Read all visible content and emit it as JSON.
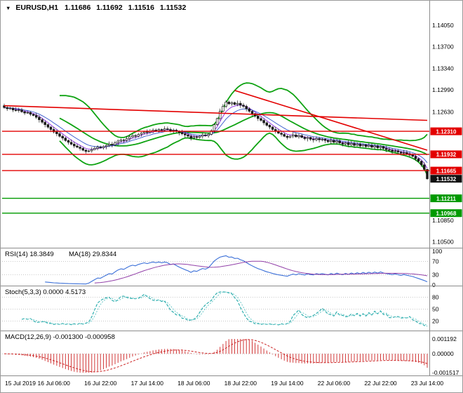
{
  "header": {
    "icon": "▼",
    "symbol_period": "EURUSD,H1",
    "open": "1.11686",
    "high": "1.11692",
    "low": "1.11516",
    "close": "1.11532"
  },
  "panes": {
    "rsi": {
      "label": "RSI(14) 18.3849",
      "ma_label": "MA(18) 29.8344"
    },
    "stoch": {
      "label": "Stoch(5,3,3) 0.0000 4.5173"
    },
    "macd": {
      "label": "MACD(12,26,9) -0.001300 -0.000958"
    }
  },
  "chart_data": {
    "type": "candlestick",
    "symbol": "EURUSD",
    "timeframe": "H1",
    "title": "EURUSD,H1 1.11686 1.11692 1.11516 1.11532",
    "final_candle": {
      "open": 1.11686,
      "high": 1.11692,
      "low": 1.11516,
      "close": 1.11532
    },
    "closes": [
      1.127,
      1.1268,
      1.1269,
      1.1266,
      1.1265,
      1.1266,
      1.1263,
      1.1261,
      1.1262,
      1.1259,
      1.1257,
      1.1254,
      1.125,
      1.1246,
      1.1242,
      1.1238,
      1.1234,
      1.123,
      1.1227,
      1.1223,
      1.122,
      1.1216,
      1.1213,
      1.121,
      1.1207,
      1.1205,
      1.1203,
      1.12,
      1.1198,
      1.1199,
      1.1201,
      1.1203,
      1.1205,
      1.1204,
      1.1206,
      1.1208,
      1.121,
      1.1209,
      1.1212,
      1.1215,
      1.1217,
      1.1216,
      1.1219,
      1.1222,
      1.1224,
      1.1223,
      1.1226,
      1.1228,
      1.123,
      1.1229,
      1.1231,
      1.1233,
      1.1232,
      1.1234,
      1.1233,
      1.1235,
      1.1234,
      1.1232,
      1.1233,
      1.1231,
      1.1229,
      1.1227,
      1.1225,
      1.1223,
      1.122,
      1.1222,
      1.1221,
      1.1223,
      1.1225,
      1.1224,
      1.1226,
      1.1232,
      1.1242,
      1.1252,
      1.1264,
      1.1272,
      1.1279,
      1.1276,
      1.1278,
      1.1275,
      1.1277,
      1.1274,
      1.1272,
      1.1268,
      1.1264,
      1.126,
      1.1256,
      1.1252,
      1.1249,
      1.1245,
      1.1241,
      1.1238,
      1.1234,
      1.1231,
      1.1228,
      1.1226,
      1.1223,
      1.1221,
      1.1223,
      1.1225,
      1.1222,
      1.1224,
      1.1221,
      1.1219,
      1.1221,
      1.1218,
      1.1217,
      1.1219,
      1.1217,
      1.1218,
      1.1216,
      1.1214,
      1.1216,
      1.1213,
      1.1215,
      1.1212,
      1.121,
      1.1212,
      1.1209,
      1.1211,
      1.1208,
      1.121,
      1.1207,
      1.1209,
      1.1206,
      1.1208,
      1.1205,
      1.1207,
      1.1204,
      1.1206,
      1.1203,
      1.1201,
      1.12,
      1.1198,
      1.1199,
      1.1197,
      1.1195,
      1.1196,
      1.1194,
      1.1192,
      1.119,
      1.1186,
      1.1182,
      1.1176,
      1.11686,
      1.11532
    ],
    "time_axis": [
      {
        "text": "15 Jul 2019",
        "index": 0
      },
      {
        "text": "16 Jul 06:00",
        "index": 17
      },
      {
        "text": "16 Jul 22:00",
        "index": 33
      },
      {
        "text": "17 Jul 14:00",
        "index": 49
      },
      {
        "text": "18 Jul 06:00",
        "index": 65
      },
      {
        "text": "18 Jul 22:00",
        "index": 81
      },
      {
        "text": "19 Jul 14:00",
        "index": 97
      },
      {
        "text": "22 Jul 06:00",
        "index": 113
      },
      {
        "text": "22 Jul 22:00",
        "index": 129
      },
      {
        "text": "23 Jul 14:00",
        "index": 145
      }
    ],
    "price_axis": {
      "min": 1.104,
      "max": 1.1443,
      "ticks": [
        1.1405,
        1.137,
        1.1334,
        1.1299,
        1.1263,
        1.1085,
        1.105
      ]
    },
    "levels": {
      "resistance": [
        1.1231,
        1.11932,
        1.11665
      ],
      "support": [
        1.11211,
        1.10968
      ],
      "current_price": 1.11532
    },
    "trendlines": [
      {
        "i1": 0,
        "p1": 1.1273,
        "i2": 145,
        "p2": 1.1249
      },
      {
        "i1": 79,
        "p1": 1.1298,
        "i2": 145,
        "p2": 1.12
      }
    ],
    "indicators": {
      "bollinger": {
        "period": 20,
        "deviation": 2.5
      },
      "ema_fast": 5,
      "ema_slow": 10,
      "rsi": {
        "period": 14,
        "ma_period": 18,
        "value": 18.3849,
        "ma_value": 29.8344,
        "scale_labels": [
          100,
          70,
          30,
          0
        ],
        "dotted_levels": [
          70,
          30
        ]
      },
      "stochastic": {
        "k": 5,
        "slowing": 3,
        "d": 3,
        "value_k": 0.0,
        "value_d": 4.5173,
        "scale_labels": [
          80,
          50,
          20
        ],
        "dotted_levels": [
          80,
          50,
          20
        ]
      },
      "macd": {
        "fast": 12,
        "slow": 26,
        "signal": 9,
        "value": -0.0013,
        "signal_value": -0.000958,
        "scale_labels": [
          "0.001192",
          "0.00000",
          "-0.001517"
        ]
      }
    }
  },
  "colors": {
    "background": "#ffffff",
    "candle": "#1a1a1a",
    "bollinger": "#0fa312",
    "ema_fast": "#8a2be2",
    "ema_slow": "#3355cc",
    "resistance": "#e30000",
    "support": "#009a00",
    "current_label": "#111111",
    "trendline": "#e30000",
    "rsi": "#3a6fd8",
    "rsi_ma": "#9240a8",
    "stoch_k": "#1fa8a8",
    "stoch_d": "#6cc8c8",
    "macd": "#cc2222",
    "grid_dotted": "#b5b5b5",
    "separator": "#8c8c8c",
    "text": "#000000"
  }
}
